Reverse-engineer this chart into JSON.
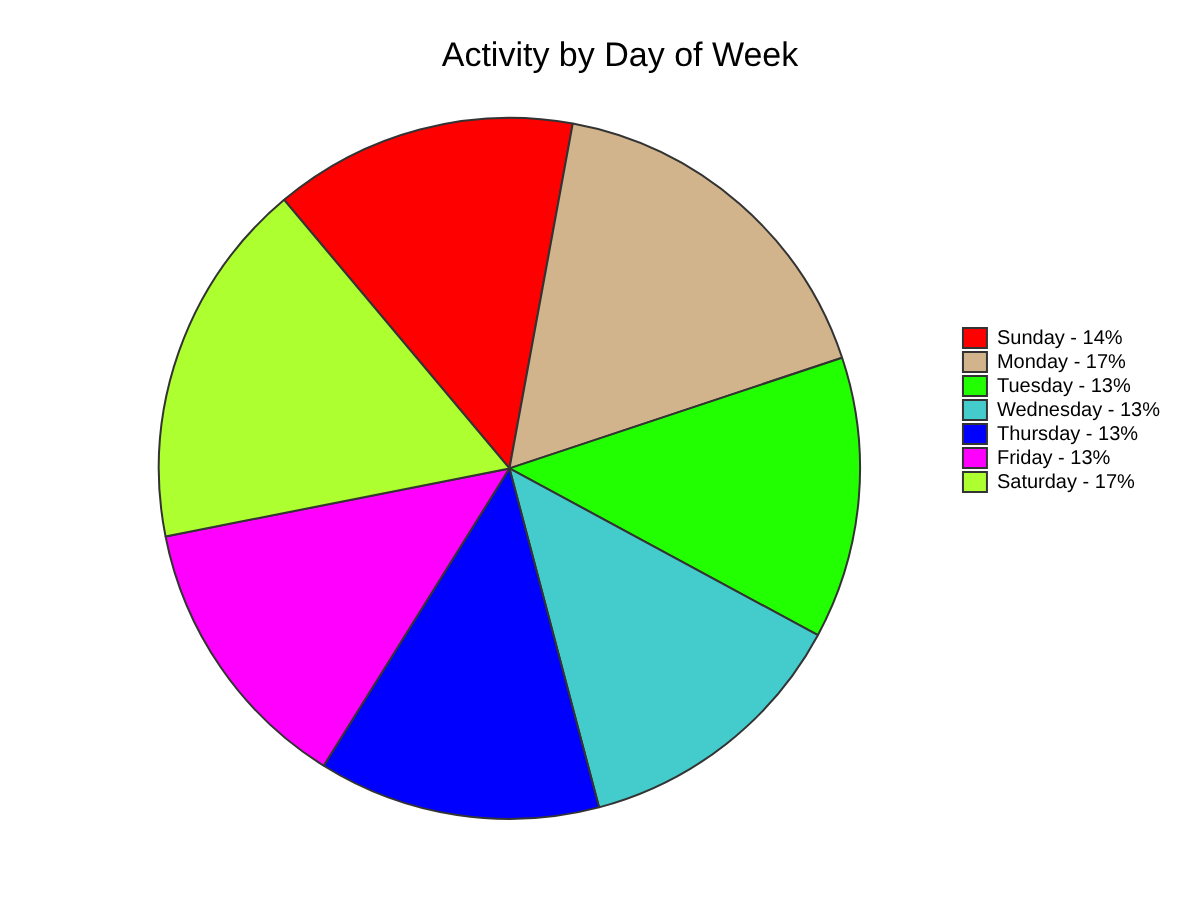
{
  "chart_data": {
    "type": "pie",
    "title": "Activity by Day of Week",
    "categories": [
      "Sunday",
      "Monday",
      "Tuesday",
      "Wednesday",
      "Thursday",
      "Friday",
      "Saturday"
    ],
    "values": [
      14,
      17,
      13,
      13,
      13,
      13,
      17
    ],
    "value_labels": [
      "14%",
      "17%",
      "13%",
      "13%",
      "13%",
      "13%",
      "17%"
    ],
    "colors": [
      "#ff0000",
      "#d2b48c",
      "#22ff00",
      "#44cccc",
      "#0000ff",
      "#ff00ff",
      "#adff2f"
    ],
    "legend": "right"
  }
}
